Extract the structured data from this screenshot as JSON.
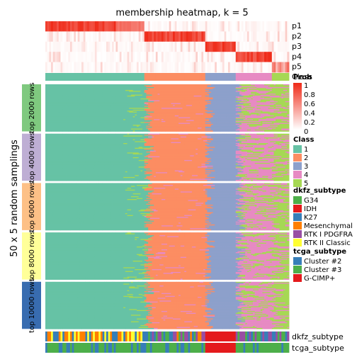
{
  "chart_data": {
    "type": "heatmap",
    "title": "membership heatmap, k = 5",
    "ylabel": "50 x 5 random samplings",
    "columns": {
      "n": 128,
      "class_blocks": [
        {
          "class": "1",
          "count": 52
        },
        {
          "class": "2",
          "count": 32
        },
        {
          "class": "3",
          "count": 16
        },
        {
          "class": "4",
          "count": 19
        },
        {
          "class": "5",
          "count": 9
        }
      ]
    },
    "membership_rows": [
      {
        "label": "p1",
        "high_in_class": "1"
      },
      {
        "label": "p2",
        "high_in_class": "2"
      },
      {
        "label": "p3",
        "high_in_class": "3"
      },
      {
        "label": "p4",
        "high_in_class": "4"
      },
      {
        "label": "p5",
        "high_in_class": "5"
      }
    ],
    "class_row_label": "Class",
    "row_groups": [
      {
        "label": "top 2000 rows",
        "color": "#7FC97F"
      },
      {
        "label": "top 4000 rows",
        "color": "#BEAED4"
      },
      {
        "label": "top 6000 rows",
        "color": "#FDC086"
      },
      {
        "label": "top 8000 rows",
        "color": "#FFFF99"
      },
      {
        "label": "top 10000 rows",
        "color": "#386CB0"
      }
    ],
    "bottom_annotations": [
      {
        "label": "dkfz_subtype"
      },
      {
        "label": "tcga_subtype"
      }
    ],
    "legends": {
      "prob": {
        "title": "Prob",
        "ticks": [
          "1",
          "0.8",
          "0.6",
          "0.4",
          "0.2",
          "0"
        ],
        "low_color": "#FFFFFF",
        "high_color": "#EF2A18"
      },
      "class": {
        "title": "Class",
        "items": [
          {
            "label": "1",
            "color": "#66C2A5"
          },
          {
            "label": "2",
            "color": "#FC8D62"
          },
          {
            "label": "3",
            "color": "#8DA0CB"
          },
          {
            "label": "4",
            "color": "#E78AC3"
          },
          {
            "label": "5",
            "color": "#A6D854"
          }
        ]
      },
      "dkfz_subtype": {
        "title": "dkfz_subtype",
        "items": [
          {
            "label": "G34",
            "color": "#4DAF4A"
          },
          {
            "label": "IDH",
            "color": "#E41A1C"
          },
          {
            "label": "K27",
            "color": "#377EB8"
          },
          {
            "label": "Mesenchymal",
            "color": "#FF7F00"
          },
          {
            "label": "RTK I PDGFRA",
            "color": "#984EA3"
          },
          {
            "label": "RTK II Classic",
            "color": "#FFFF33"
          }
        ]
      },
      "tcga_subtype": {
        "title": "tcga_subtype",
        "items": [
          {
            "label": "Cluster #2",
            "color": "#377EB8"
          },
          {
            "label": "Cluster #3",
            "color": "#4DAF4A"
          },
          {
            "label": "G-CIMP+",
            "color": "#E41A1C"
          }
        ]
      }
    }
  }
}
